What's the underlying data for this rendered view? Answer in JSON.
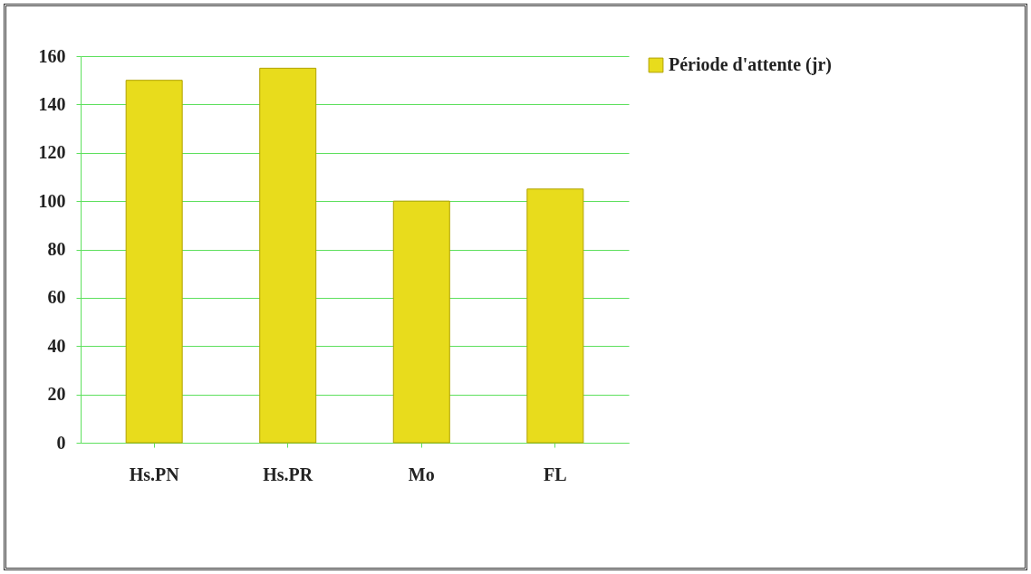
{
  "chart_data": {
    "type": "bar",
    "categories": [
      "Hs.PN",
      "Hs.PR",
      "Mo",
      "FL"
    ],
    "series": [
      {
        "name": "Période d'attente (jr)",
        "color": "#e8dc1c",
        "values": [
          150,
          155,
          100,
          105
        ]
      }
    ],
    "ylim": [
      0,
      160
    ],
    "yticks": [
      0,
      20,
      40,
      60,
      80,
      100,
      120,
      140,
      160
    ],
    "grid": "y",
    "legend": "right"
  }
}
